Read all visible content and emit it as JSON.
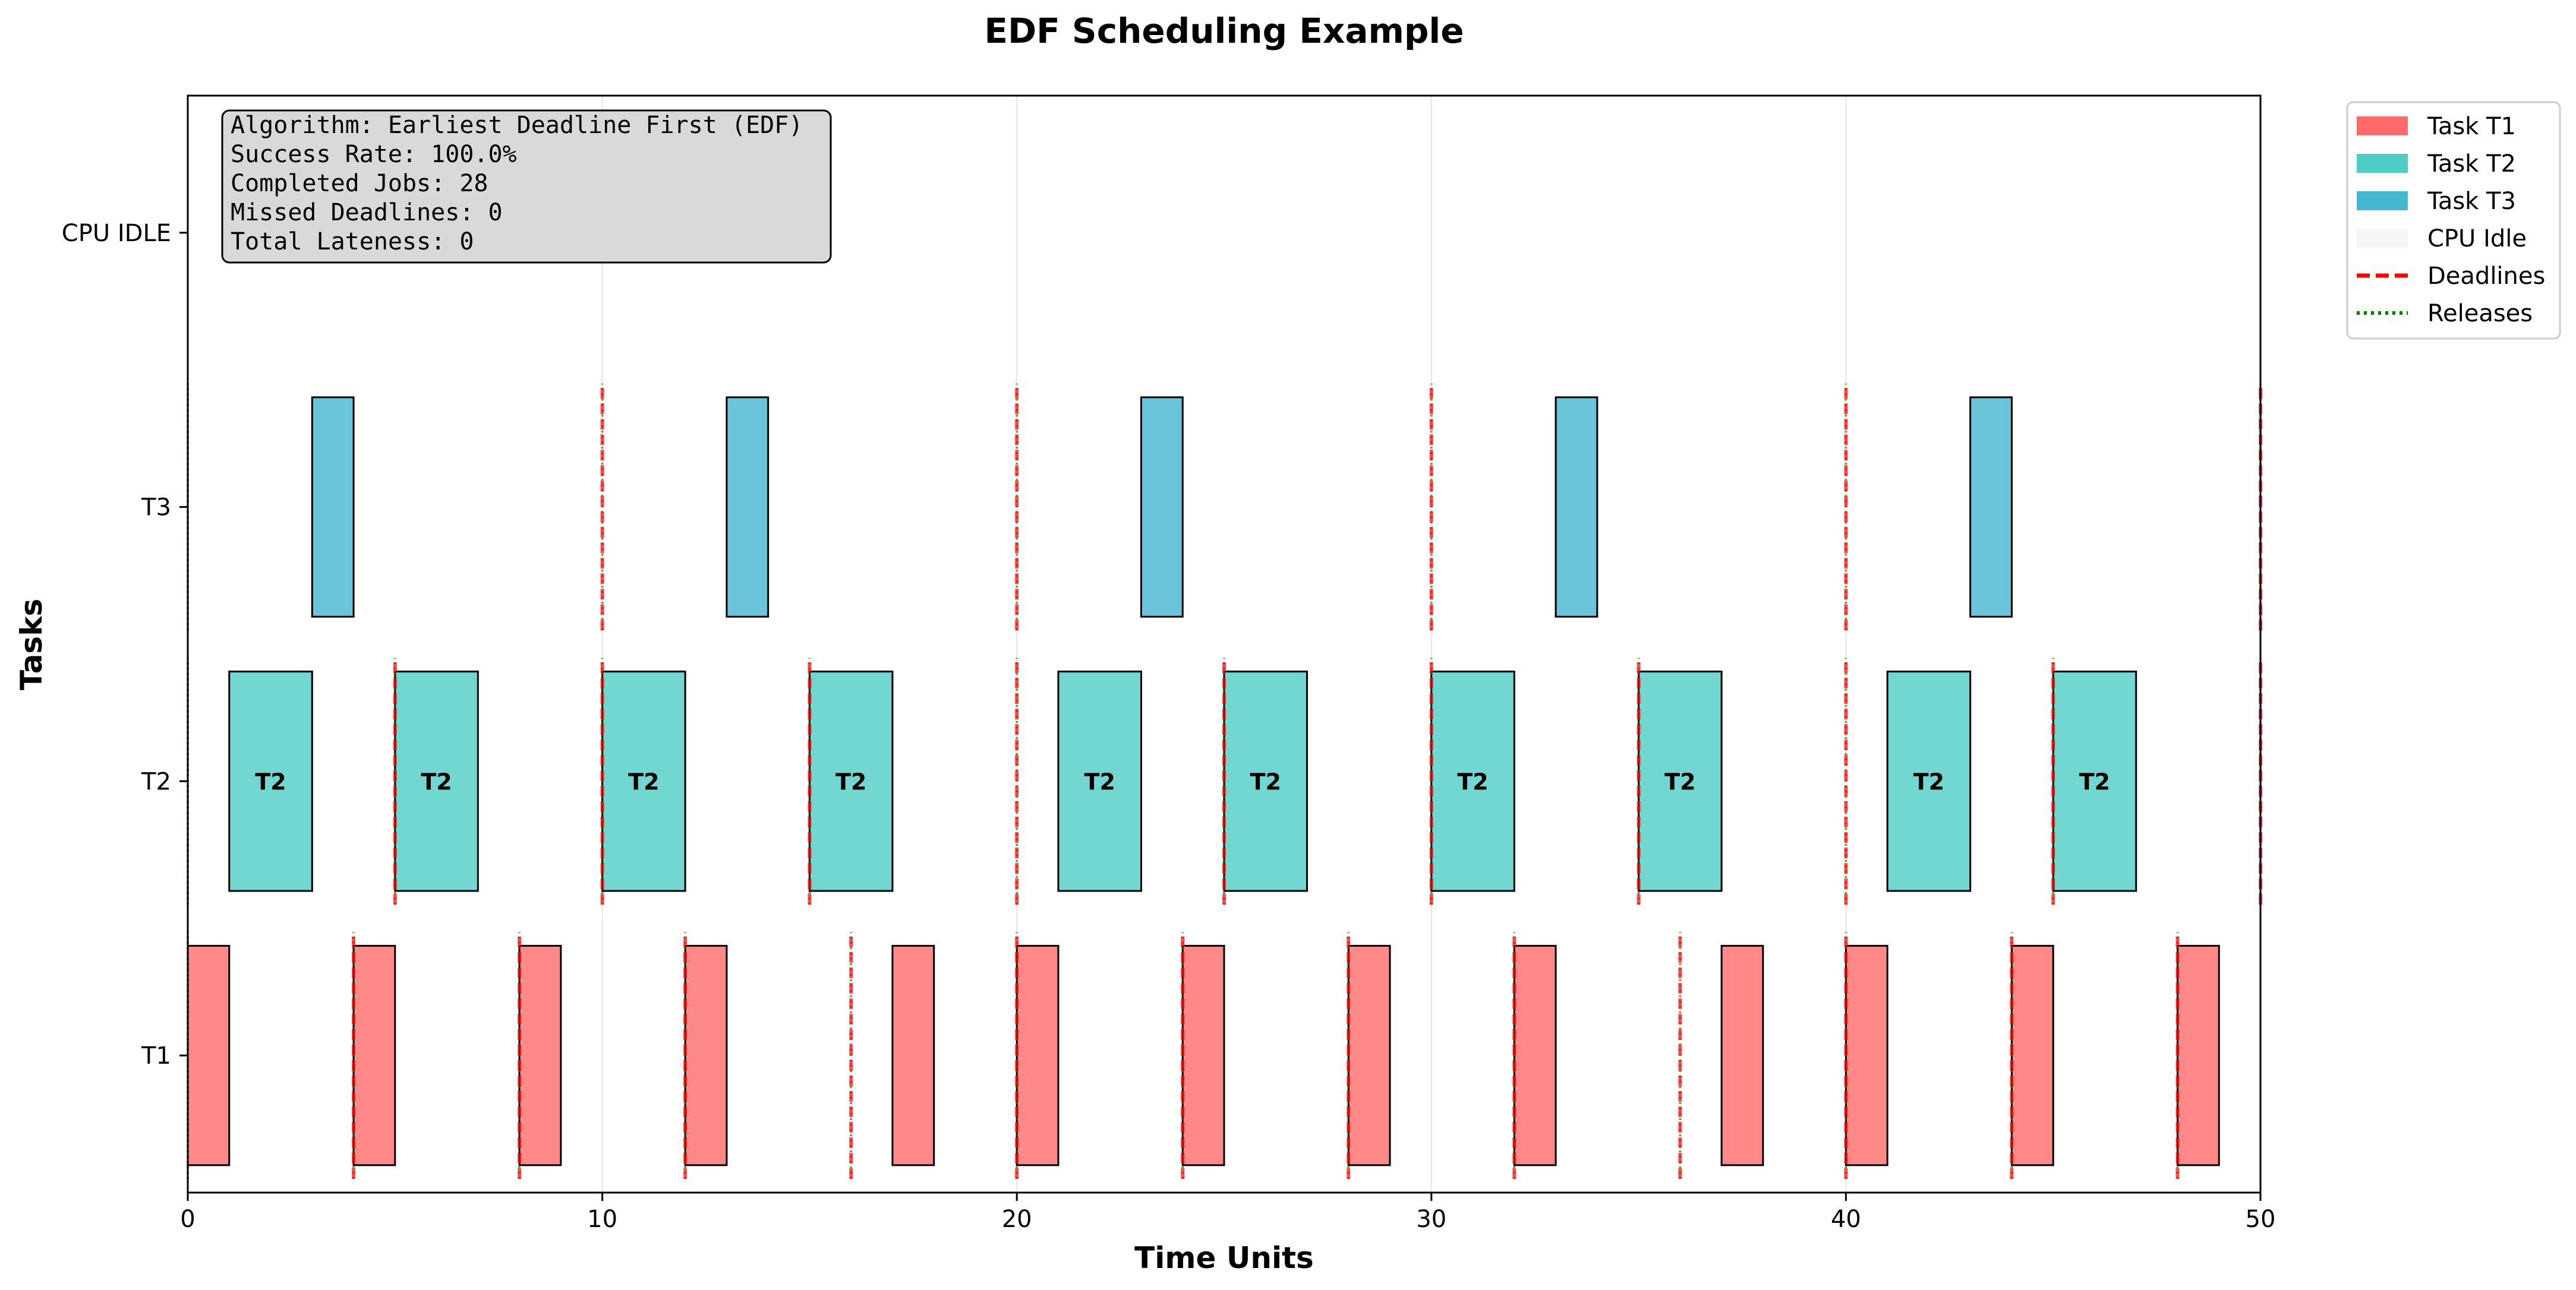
{
  "chart_data": {
    "type": "gantt",
    "title": "EDF Scheduling Example",
    "xlabel": "Time Units",
    "ylabel": "Tasks",
    "xlim": [
      0,
      50
    ],
    "x_ticks": [
      0,
      10,
      20,
      30,
      40,
      50
    ],
    "y_categories": [
      "T1",
      "T2",
      "T3",
      "CPU IDLE"
    ],
    "grid": "vertical",
    "legend_position": "outside-top-right",
    "colors": {
      "T1": "#ff6b6b",
      "T2": "#4ecdc4",
      "T3": "#45b7d1",
      "idle": "#f5f5f5",
      "deadline": "#ff0000",
      "release": "#008000",
      "info_box": "#d9d9d9"
    },
    "series": [
      {
        "task": "T1",
        "row": 0,
        "bar_label": "",
        "intervals": [
          [
            0,
            1
          ],
          [
            4,
            5
          ],
          [
            8,
            9
          ],
          [
            12,
            13
          ],
          [
            17,
            18
          ],
          [
            20,
            21
          ],
          [
            24,
            25
          ],
          [
            28,
            29
          ],
          [
            32,
            33
          ],
          [
            37,
            38
          ],
          [
            40,
            41
          ],
          [
            44,
            45
          ],
          [
            48,
            49
          ]
        ]
      },
      {
        "task": "T2",
        "row": 1,
        "bar_label": "T2",
        "intervals": [
          [
            1,
            3
          ],
          [
            5,
            7
          ],
          [
            10,
            12
          ],
          [
            15,
            17
          ],
          [
            21,
            23
          ],
          [
            25,
            27
          ],
          [
            30,
            32
          ],
          [
            35,
            37
          ],
          [
            41,
            43
          ],
          [
            45,
            47
          ]
        ]
      },
      {
        "task": "T3",
        "row": 2,
        "bar_label": "",
        "intervals": [
          [
            3,
            4
          ],
          [
            13,
            14
          ],
          [
            23,
            24
          ],
          [
            33,
            34
          ],
          [
            43,
            44
          ]
        ]
      }
    ],
    "deadlines": {
      "T1": [
        4,
        8,
        12,
        16,
        20,
        24,
        28,
        32,
        36,
        40,
        44,
        48
      ],
      "T2": [
        5,
        10,
        15,
        20,
        25,
        30,
        35,
        40,
        45,
        50
      ],
      "T3": [
        10,
        20,
        30,
        40,
        50
      ]
    },
    "releases": {
      "T1": [
        0,
        4,
        8,
        12,
        16,
        20,
        24,
        28,
        32,
        36,
        40,
        44,
        48
      ],
      "T2": [
        0,
        5,
        10,
        15,
        20,
        25,
        30,
        35,
        40,
        45,
        50
      ],
      "T3": [
        0,
        10,
        20,
        30,
        40,
        50
      ]
    },
    "info_box": [
      "Algorithm: Earliest Deadline First (EDF)",
      "Success Rate: 100.0%",
      "Completed Jobs: 28",
      "Missed Deadlines: 0",
      "Total Lateness: 0"
    ],
    "legend": [
      {
        "label": "Task T1",
        "kind": "patch",
        "color": "#ff6b6b"
      },
      {
        "label": "Task T2",
        "kind": "patch",
        "color": "#4ecdc4"
      },
      {
        "label": "Task T3",
        "kind": "patch",
        "color": "#45b7d1"
      },
      {
        "label": "CPU Idle",
        "kind": "patch",
        "color": "#f5f5f5"
      },
      {
        "label": "Deadlines",
        "kind": "dashed",
        "color": "#ff0000"
      },
      {
        "label": "Releases",
        "kind": "dotted",
        "color": "#008000"
      }
    ]
  }
}
